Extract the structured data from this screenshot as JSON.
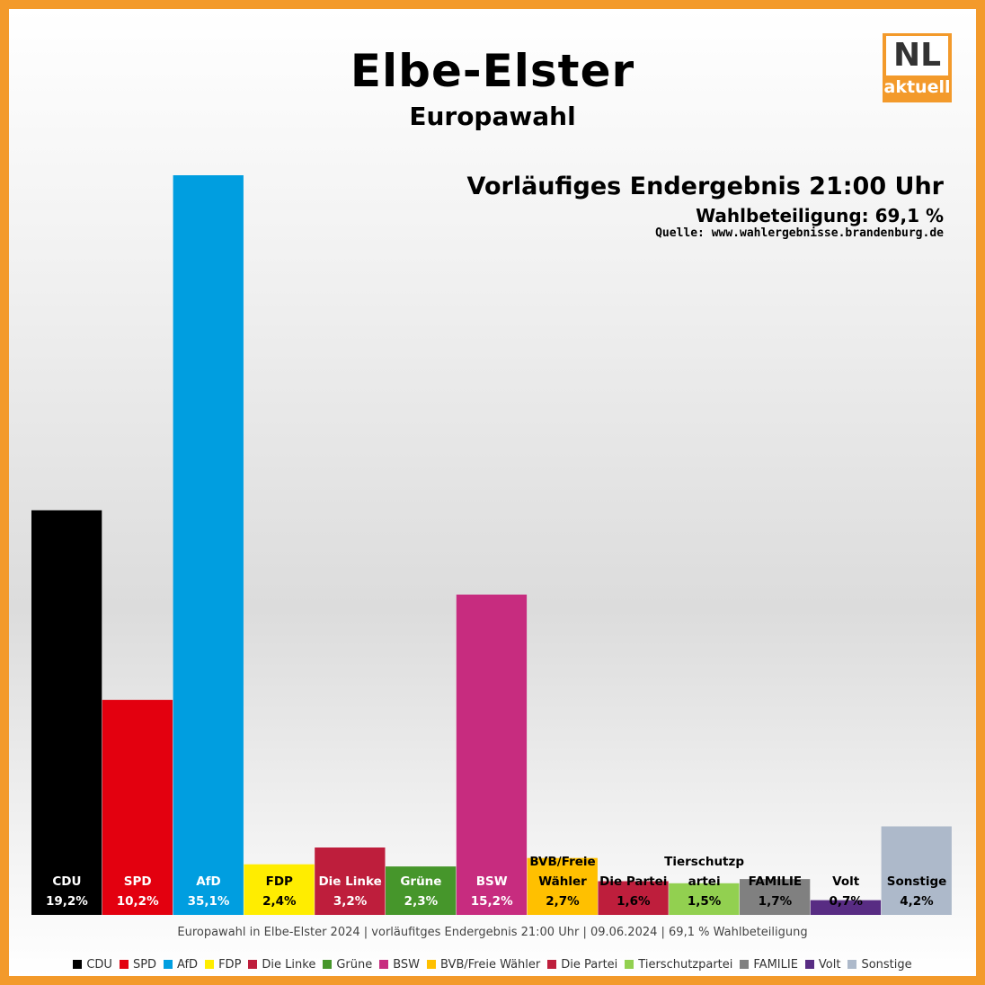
{
  "header": {
    "title": "Elbe-Elster",
    "subtitle": "Europawahl",
    "logo_top": "NL",
    "logo_bottom": "aktuell",
    "result_label": "Vorläufiges Endergebnis 21:00 Uhr",
    "turnout_label": "Wahlbeteiligung:  69,1 %",
    "source_label": "Quelle: www.wahlergebnisse.brandenburg.de"
  },
  "colors": {
    "frame": "#f39a2b",
    "logo": "#f39a2b"
  },
  "chart_data": {
    "type": "bar",
    "categories": [
      "CDU",
      "SPD",
      "AfD",
      "FDP",
      "Die Linke",
      "Grüne",
      "BSW",
      "BVB/Freie Wähler",
      "Die Partei",
      "Tierschutzpartei",
      "FAMILIE",
      "Volt",
      "Sonstige"
    ],
    "bar_labels": [
      [
        "CDU"
      ],
      [
        "SPD"
      ],
      [
        "AfD"
      ],
      [
        "FDP"
      ],
      [
        "Die Linke"
      ],
      [
        "Grüne"
      ],
      [
        "BSW"
      ],
      [
        "BVB/Freie",
        "Wähler"
      ],
      [
        "Die Partei"
      ],
      [
        "Tierschutzp",
        "artei"
      ],
      [
        "FAMILIE"
      ],
      [
        "Volt"
      ],
      [
        "Sonstige"
      ]
    ],
    "values": [
      19.2,
      10.2,
      35.1,
      2.4,
      3.2,
      2.3,
      15.2,
      2.7,
      1.6,
      1.5,
      1.7,
      0.7,
      4.2
    ],
    "value_labels": [
      "19,2%",
      "10,2%",
      "35,1%",
      "2,4%",
      "3,2%",
      "2,3%",
      "15,2%",
      "2,7%",
      "1,6%",
      "1,5%",
      "1,7%",
      "0,7%",
      "4,2%"
    ],
    "colors": [
      "#000000",
      "#e3000f",
      "#009ee0",
      "#ffed00",
      "#be1e3c",
      "#46962b",
      "#c72c7f",
      "#ffc000",
      "#be1e3c",
      "#92d050",
      "#808080",
      "#582c83",
      "#adb9ca"
    ],
    "label_colors": [
      "#ffffff",
      "#ffffff",
      "#ffffff",
      "#000000",
      "#ffffff",
      "#ffffff",
      "#ffffff",
      "#000000",
      "#000000",
      "#000000",
      "#000000",
      "#000000",
      "#000000"
    ],
    "ylim": [
      0,
      35.1
    ],
    "grid": false,
    "legend_position": "bottom"
  },
  "footer": "Europawahl in Elbe-Elster 2024 | vorläufitges Endergebnis 21:00 Uhr | 09.06.2024 | 69,1 % Wahlbeteiligung",
  "legend": [
    {
      "label": "CDU",
      "color": "#000000"
    },
    {
      "label": "SPD",
      "color": "#e3000f"
    },
    {
      "label": "AfD",
      "color": "#009ee0"
    },
    {
      "label": "FDP",
      "color": "#ffed00"
    },
    {
      "label": "Die Linke",
      "color": "#be1e3c"
    },
    {
      "label": "Grüne",
      "color": "#46962b"
    },
    {
      "label": "BSW",
      "color": "#c72c7f"
    },
    {
      "label": "BVB/Freie Wähler",
      "color": "#ffc000"
    },
    {
      "label": "Die Partei",
      "color": "#be1e3c"
    },
    {
      "label": "Tierschutzpartei",
      "color": "#92d050"
    },
    {
      "label": "FAMILIE",
      "color": "#808080"
    },
    {
      "label": "Volt",
      "color": "#582c83"
    },
    {
      "label": "Sonstige",
      "color": "#adb9ca"
    }
  ]
}
